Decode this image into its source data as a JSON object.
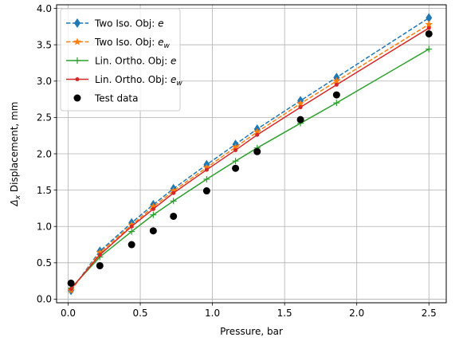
{
  "chart_data": {
    "type": "line",
    "xlabel": "Pressure, bar",
    "ylabel_prefix": "Δ",
    "ylabel_sub": "x",
    "ylabel_suffix": " Displacement, mm",
    "xlim": [
      -0.08,
      2.62
    ],
    "ylim": [
      -0.05,
      4.05
    ],
    "xticks": [
      0.0,
      0.5,
      1.0,
      1.5,
      2.0,
      2.5
    ],
    "xtick_labels": [
      "0.0",
      "0.5",
      "1.0",
      "1.5",
      "2.0",
      "2.5"
    ],
    "yticks": [
      0.0,
      0.5,
      1.0,
      1.5,
      2.0,
      2.5,
      3.0,
      3.5,
      4.0
    ],
    "ytick_labels": [
      "0.0",
      "0.5",
      "1.0",
      "1.5",
      "2.0",
      "2.5",
      "3.0",
      "3.5",
      "4.0"
    ],
    "grid": true,
    "legend_position": "top-left",
    "x": [
      0.02,
      0.22,
      0.44,
      0.59,
      0.73,
      0.96,
      1.16,
      1.31,
      1.61,
      1.86,
      2.5
    ],
    "series": [
      {
        "name_main": "Two Iso. Obj: ",
        "name_var": "e",
        "name_sub": "",
        "color": "#1f77b4",
        "marker": "diamond",
        "linestyle": "dashed",
        "values": [
          0.12,
          0.66,
          1.05,
          1.3,
          1.52,
          1.85,
          2.13,
          2.34,
          2.73,
          3.05,
          3.87
        ]
      },
      {
        "name_main": "Two Iso. Obj: ",
        "name_var": "e",
        "name_sub": "w",
        "color": "#ff7f0e",
        "marker": "star",
        "linestyle": "dashed",
        "values": [
          0.12,
          0.64,
          1.02,
          1.27,
          1.49,
          1.81,
          2.09,
          2.3,
          2.69,
          3.0,
          3.78
        ]
      },
      {
        "name_main": "Lin. Ortho. Obj: ",
        "name_var": "e",
        "name_sub": "",
        "color": "#2ca02c",
        "marker": "plus",
        "linestyle": "solid",
        "values": [
          0.15,
          0.58,
          0.93,
          1.16,
          1.35,
          1.65,
          1.9,
          2.08,
          2.42,
          2.7,
          3.44
        ]
      },
      {
        "name_main": "Lin. Ortho. Obj: ",
        "name_var": "e",
        "name_sub": "w",
        "color": "#d62728",
        "marker": "dot",
        "linestyle": "solid",
        "values": [
          0.14,
          0.61,
          1.0,
          1.24,
          1.46,
          1.78,
          2.05,
          2.26,
          2.64,
          2.95,
          3.73
        ]
      }
    ],
    "test_data": {
      "name": "Test data",
      "color": "#000000",
      "values": [
        0.22,
        0.46,
        0.75,
        0.94,
        1.14,
        1.49,
        1.8,
        2.03,
        2.47,
        2.81,
        3.65
      ]
    }
  }
}
